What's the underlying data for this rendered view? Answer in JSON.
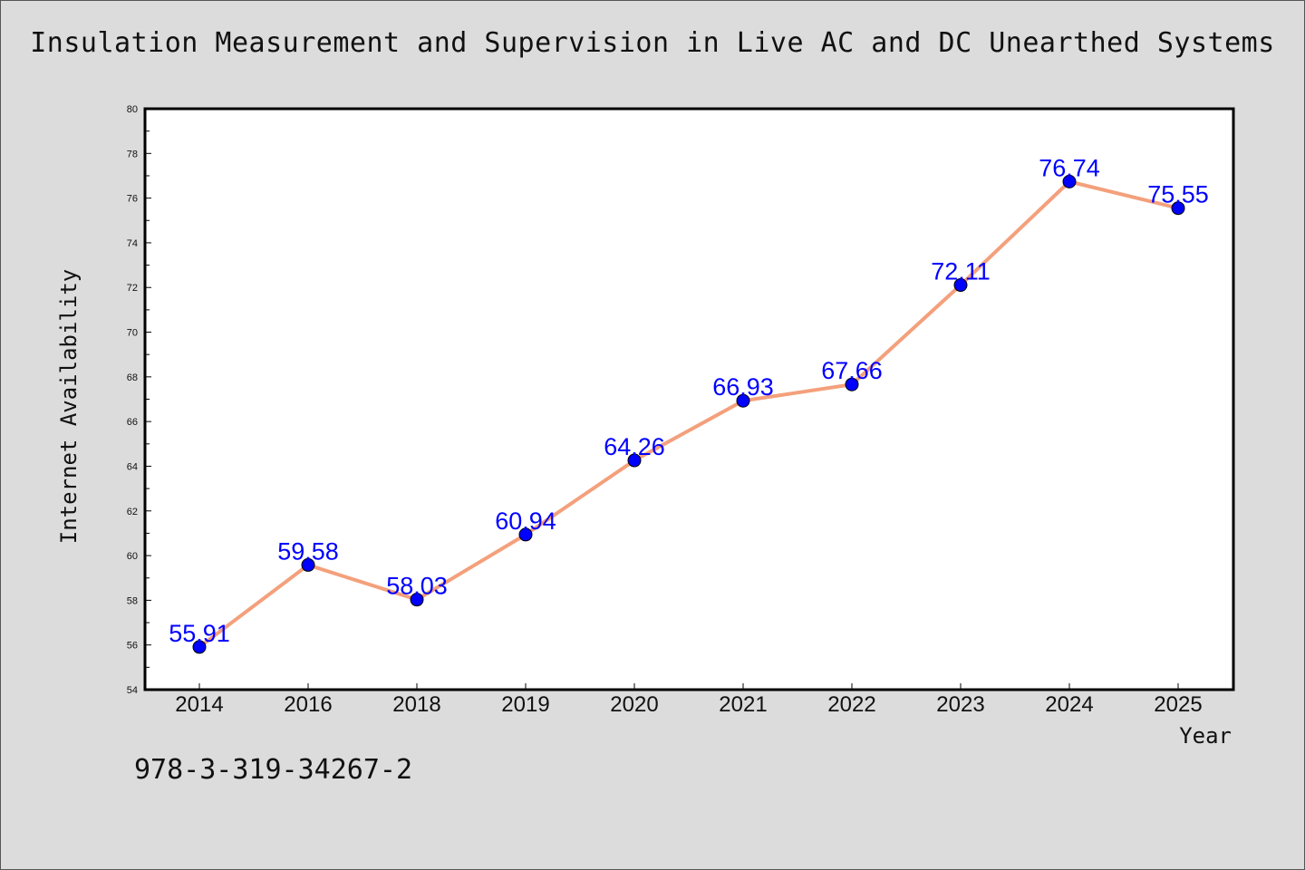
{
  "title": "Insulation Measurement and Supervision in Live AC and DC Unearthed Systems",
  "isbn": "978-3-319-34267-2",
  "colors": {
    "line": "#f4a07c",
    "marker": "#0000ff",
    "label": "#0000ff",
    "background": "#dcdcdc",
    "plot_bg": "#ffffff"
  },
  "chart_data": {
    "type": "line",
    "categories": [
      "2014",
      "2016",
      "2018",
      "2019",
      "2020",
      "2021",
      "2022",
      "2023",
      "2024",
      "2025"
    ],
    "values": [
      55.91,
      59.58,
      58.03,
      60.94,
      64.26,
      66.93,
      67.66,
      72.11,
      76.74,
      75.55
    ],
    "data_labels": [
      "55.91",
      "59.58",
      "58.03",
      "60.94",
      "64.26",
      "66.93",
      "67.66",
      "72.11",
      "76.74",
      "75.55"
    ],
    "xlabel": "Year",
    "ylabel": "Internet Availability",
    "ylim": [
      54,
      80
    ],
    "yticks": [
      "54",
      "56",
      "58",
      "60",
      "62",
      "64",
      "66",
      "68",
      "70",
      "72",
      "74",
      "76",
      "78",
      "80"
    ],
    "grid": false,
    "legend": "none"
  }
}
